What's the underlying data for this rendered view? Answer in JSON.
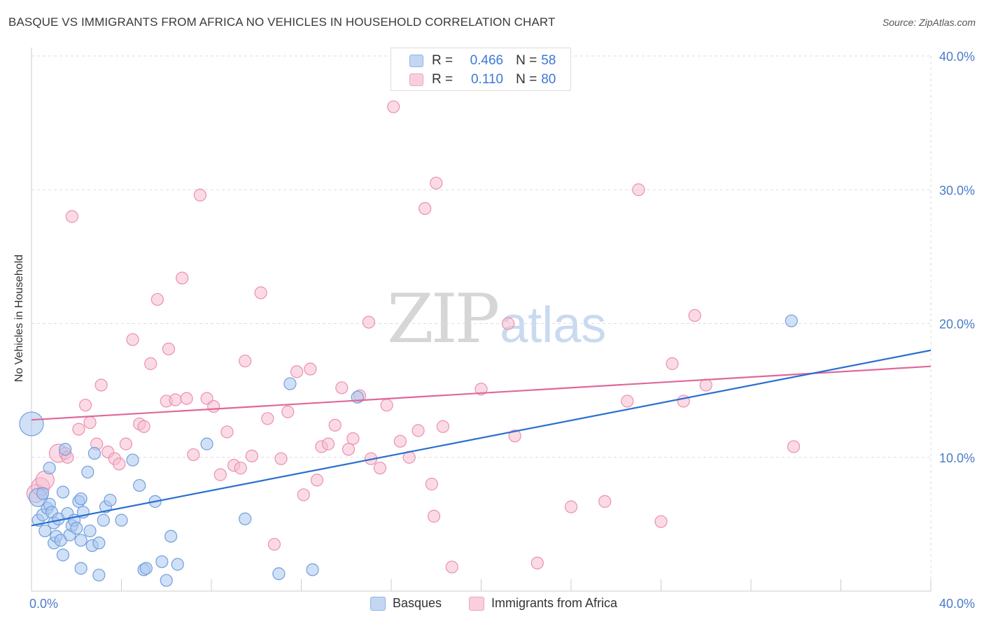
{
  "title": "BASQUE VS IMMIGRANTS FROM AFRICA NO VEHICLES IN HOUSEHOLD CORRELATION CHART",
  "source": "Source: ZipAtlas.com",
  "watermark": {
    "zip": "ZIP",
    "atlas": "atlas"
  },
  "legend": {
    "rows": [
      {
        "r_label": "R =",
        "r_value": "0.466",
        "n_label": "N =",
        "n_value": "58"
      },
      {
        "r_label": "R =",
        "r_value": "0.110",
        "n_label": "N =",
        "n_value": "80"
      }
    ]
  },
  "colors": {
    "basque_fill": "#a9c7ef",
    "basque_stroke": "#6f9fdc",
    "basque_line": "#2a6fd0",
    "africa_fill": "#f6bdd0",
    "africa_stroke": "#ec8fb0",
    "africa_line": "#e0679a",
    "grid": "#dddddd",
    "tick_label": "#4a7cc9"
  },
  "chart_data": {
    "type": "scatter",
    "title": "BASQUE VS IMMIGRANTS FROM AFRICA NO VEHICLES IN HOUSEHOLD CORRELATION CHART",
    "xlabel": "",
    "ylabel": "No Vehicles in Household",
    "xlim": [
      0,
      40
    ],
    "ylim": [
      0,
      40
    ],
    "x_tick_labels": [
      "0.0%",
      "40.0%"
    ],
    "y_ticks": [
      10,
      20,
      30,
      40
    ],
    "y_tick_labels": [
      "10.0%",
      "20.0%",
      "30.0%",
      "40.0%"
    ],
    "legend_position": "top-center",
    "series": [
      {
        "name": "Basques",
        "r": 0.466,
        "n": 58,
        "trend": {
          "x": [
            0,
            40
          ],
          "y": [
            4.9,
            18.0
          ]
        },
        "points": [
          {
            "x": 0.0,
            "y": 12.5,
            "s": 3
          },
          {
            "x": 0.3,
            "y": 7.0,
            "s": 2
          },
          {
            "x": 0.3,
            "y": 5.3,
            "s": 1
          },
          {
            "x": 0.5,
            "y": 7.3,
            "s": 1
          },
          {
            "x": 0.5,
            "y": 5.7,
            "s": 1
          },
          {
            "x": 0.6,
            "y": 4.5,
            "s": 1
          },
          {
            "x": 0.7,
            "y": 6.2,
            "s": 1
          },
          {
            "x": 0.8,
            "y": 9.2,
            "s": 1
          },
          {
            "x": 0.8,
            "y": 6.5,
            "s": 1
          },
          {
            "x": 0.9,
            "y": 5.9,
            "s": 1
          },
          {
            "x": 1.0,
            "y": 5.1,
            "s": 1
          },
          {
            "x": 1.0,
            "y": 3.6,
            "s": 1
          },
          {
            "x": 1.1,
            "y": 4.1,
            "s": 1
          },
          {
            "x": 1.2,
            "y": 5.4,
            "s": 1
          },
          {
            "x": 1.3,
            "y": 3.8,
            "s": 1
          },
          {
            "x": 1.4,
            "y": 2.7,
            "s": 1
          },
          {
            "x": 1.4,
            "y": 7.4,
            "s": 1
          },
          {
            "x": 1.5,
            "y": 10.6,
            "s": 1
          },
          {
            "x": 1.6,
            "y": 5.8,
            "s": 1
          },
          {
            "x": 1.7,
            "y": 4.2,
            "s": 1
          },
          {
            "x": 1.8,
            "y": 4.9,
            "s": 1
          },
          {
            "x": 1.9,
            "y": 5.3,
            "s": 1
          },
          {
            "x": 2.0,
            "y": 4.7,
            "s": 1
          },
          {
            "x": 2.1,
            "y": 6.7,
            "s": 1
          },
          {
            "x": 2.2,
            "y": 6.9,
            "s": 1
          },
          {
            "x": 2.2,
            "y": 3.8,
            "s": 1
          },
          {
            "x": 2.2,
            "y": 1.7,
            "s": 1
          },
          {
            "x": 2.3,
            "y": 5.9,
            "s": 1
          },
          {
            "x": 2.5,
            "y": 8.9,
            "s": 1
          },
          {
            "x": 2.6,
            "y": 4.5,
            "s": 1
          },
          {
            "x": 2.7,
            "y": 3.4,
            "s": 1
          },
          {
            "x": 2.8,
            "y": 10.3,
            "s": 1
          },
          {
            "x": 3.0,
            "y": 3.6,
            "s": 1
          },
          {
            "x": 3.0,
            "y": 1.2,
            "s": 1
          },
          {
            "x": 3.2,
            "y": 5.3,
            "s": 1
          },
          {
            "x": 3.3,
            "y": 6.3,
            "s": 1
          },
          {
            "x": 3.5,
            "y": 6.8,
            "s": 1
          },
          {
            "x": 4.0,
            "y": 5.3,
            "s": 1
          },
          {
            "x": 4.5,
            "y": 9.8,
            "s": 1
          },
          {
            "x": 4.8,
            "y": 7.9,
            "s": 1
          },
          {
            "x": 5.0,
            "y": 1.6,
            "s": 1
          },
          {
            "x": 5.1,
            "y": 1.7,
            "s": 1
          },
          {
            "x": 5.5,
            "y": 6.7,
            "s": 1
          },
          {
            "x": 5.8,
            "y": 2.2,
            "s": 1
          },
          {
            "x": 6.0,
            "y": 0.8,
            "s": 1
          },
          {
            "x": 6.2,
            "y": 4.1,
            "s": 1
          },
          {
            "x": 6.5,
            "y": 2.0,
            "s": 1
          },
          {
            "x": 7.8,
            "y": 11.0,
            "s": 1
          },
          {
            "x": 9.5,
            "y": 5.4,
            "s": 1
          },
          {
            "x": 11.0,
            "y": 1.3,
            "s": 1
          },
          {
            "x": 11.5,
            "y": 15.5,
            "s": 1
          },
          {
            "x": 12.5,
            "y": 1.6,
            "s": 1
          },
          {
            "x": 14.5,
            "y": 14.5,
            "s": 1
          },
          {
            "x": 33.8,
            "y": 20.2,
            "s": 1
          }
        ]
      },
      {
        "name": "Immigrants from Africa",
        "r": 0.11,
        "n": 80,
        "trend": {
          "x": [
            0,
            40
          ],
          "y": [
            12.8,
            16.8
          ]
        },
        "points": [
          {
            "x": 0.2,
            "y": 7.3,
            "s": 2
          },
          {
            "x": 0.4,
            "y": 7.8,
            "s": 2
          },
          {
            "x": 0.6,
            "y": 8.3,
            "s": 2
          },
          {
            "x": 1.2,
            "y": 10.3,
            "s": 2
          },
          {
            "x": 1.5,
            "y": 10.3,
            "s": 1
          },
          {
            "x": 1.6,
            "y": 10.0,
            "s": 1
          },
          {
            "x": 1.8,
            "y": 28.0,
            "s": 1
          },
          {
            "x": 2.1,
            "y": 12.1,
            "s": 1
          },
          {
            "x": 2.4,
            "y": 13.9,
            "s": 1
          },
          {
            "x": 2.6,
            "y": 12.6,
            "s": 1
          },
          {
            "x": 2.9,
            "y": 11.0,
            "s": 1
          },
          {
            "x": 3.1,
            "y": 15.4,
            "s": 1
          },
          {
            "x": 3.4,
            "y": 10.4,
            "s": 1
          },
          {
            "x": 3.7,
            "y": 9.9,
            "s": 1
          },
          {
            "x": 3.9,
            "y": 9.5,
            "s": 1
          },
          {
            "x": 4.2,
            "y": 11.0,
            "s": 1
          },
          {
            "x": 4.5,
            "y": 18.8,
            "s": 1
          },
          {
            "x": 4.8,
            "y": 12.5,
            "s": 1
          },
          {
            "x": 5.0,
            "y": 12.3,
            "s": 1
          },
          {
            "x": 5.3,
            "y": 17.0,
            "s": 1
          },
          {
            "x": 5.6,
            "y": 21.8,
            "s": 1
          },
          {
            "x": 6.0,
            "y": 14.2,
            "s": 1
          },
          {
            "x": 6.1,
            "y": 18.1,
            "s": 1
          },
          {
            "x": 6.4,
            "y": 14.3,
            "s": 1
          },
          {
            "x": 6.7,
            "y": 23.4,
            "s": 1
          },
          {
            "x": 6.9,
            "y": 14.4,
            "s": 1
          },
          {
            "x": 7.2,
            "y": 10.2,
            "s": 1
          },
          {
            "x": 7.5,
            "y": 29.6,
            "s": 1
          },
          {
            "x": 7.8,
            "y": 14.4,
            "s": 1
          },
          {
            "x": 8.1,
            "y": 13.8,
            "s": 1
          },
          {
            "x": 8.4,
            "y": 8.7,
            "s": 1
          },
          {
            "x": 8.7,
            "y": 11.9,
            "s": 1
          },
          {
            "x": 9.0,
            "y": 9.4,
            "s": 1
          },
          {
            "x": 9.3,
            "y": 9.2,
            "s": 1
          },
          {
            "x": 9.5,
            "y": 17.2,
            "s": 1
          },
          {
            "x": 9.8,
            "y": 10.1,
            "s": 1
          },
          {
            "x": 10.2,
            "y": 22.3,
            "s": 1
          },
          {
            "x": 10.5,
            "y": 12.9,
            "s": 1
          },
          {
            "x": 10.8,
            "y": 3.5,
            "s": 1
          },
          {
            "x": 11.1,
            "y": 9.9,
            "s": 1
          },
          {
            "x": 11.4,
            "y": 13.4,
            "s": 1
          },
          {
            "x": 11.8,
            "y": 16.4,
            "s": 1
          },
          {
            "x": 12.1,
            "y": 7.2,
            "s": 1
          },
          {
            "x": 12.4,
            "y": 16.6,
            "s": 1
          },
          {
            "x": 12.7,
            "y": 8.3,
            "s": 1
          },
          {
            "x": 12.9,
            "y": 10.8,
            "s": 1
          },
          {
            "x": 13.2,
            "y": 11.0,
            "s": 1
          },
          {
            "x": 13.5,
            "y": 12.4,
            "s": 1
          },
          {
            "x": 13.8,
            "y": 15.2,
            "s": 1
          },
          {
            "x": 14.1,
            "y": 10.6,
            "s": 1
          },
          {
            "x": 14.3,
            "y": 11.4,
            "s": 1
          },
          {
            "x": 14.6,
            "y": 14.6,
            "s": 1
          },
          {
            "x": 15.0,
            "y": 20.1,
            "s": 1
          },
          {
            "x": 15.1,
            "y": 9.9,
            "s": 1
          },
          {
            "x": 15.5,
            "y": 9.2,
            "s": 1
          },
          {
            "x": 15.8,
            "y": 13.9,
            "s": 1
          },
          {
            "x": 16.1,
            "y": 36.2,
            "s": 1
          },
          {
            "x": 16.4,
            "y": 11.2,
            "s": 1
          },
          {
            "x": 16.8,
            "y": 10.0,
            "s": 1
          },
          {
            "x": 17.2,
            "y": 12.0,
            "s": 1
          },
          {
            "x": 17.5,
            "y": 28.6,
            "s": 1
          },
          {
            "x": 17.8,
            "y": 8.0,
            "s": 1
          },
          {
            "x": 18.0,
            "y": 30.5,
            "s": 1
          },
          {
            "x": 18.3,
            "y": 12.3,
            "s": 1
          },
          {
            "x": 18.7,
            "y": 1.8,
            "s": 1
          },
          {
            "x": 17.9,
            "y": 5.6,
            "s": 1
          },
          {
            "x": 20.0,
            "y": 15.1,
            "s": 1
          },
          {
            "x": 21.2,
            "y": 20.0,
            "s": 1
          },
          {
            "x": 21.5,
            "y": 11.6,
            "s": 1
          },
          {
            "x": 22.5,
            "y": 2.1,
            "s": 1
          },
          {
            "x": 24.0,
            "y": 6.3,
            "s": 1
          },
          {
            "x": 25.5,
            "y": 6.7,
            "s": 1
          },
          {
            "x": 26.5,
            "y": 14.2,
            "s": 1
          },
          {
            "x": 27.0,
            "y": 30.0,
            "s": 1
          },
          {
            "x": 28.0,
            "y": 5.2,
            "s": 1
          },
          {
            "x": 28.5,
            "y": 17.0,
            "s": 1
          },
          {
            "x": 29.0,
            "y": 14.2,
            "s": 1
          },
          {
            "x": 29.5,
            "y": 20.6,
            "s": 1
          },
          {
            "x": 30.0,
            "y": 15.4,
            "s": 1
          },
          {
            "x": 33.9,
            "y": 10.8,
            "s": 1
          }
        ]
      }
    ]
  }
}
